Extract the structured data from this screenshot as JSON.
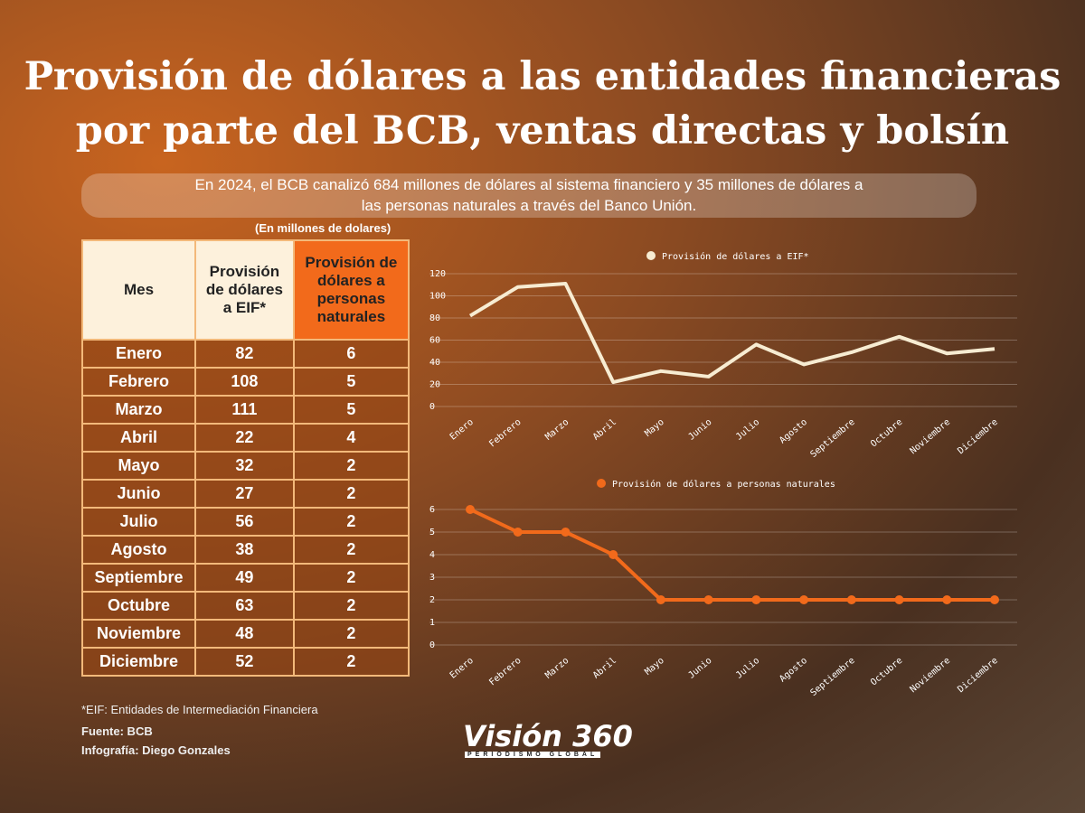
{
  "title": [
    "Provisión de dólares a las entidades financieras",
    "por parte del BCB, ventas directas y bolsín"
  ],
  "subtitle": [
    "En 2024, el BCB canalizó 684 millones de dólares al sistema financiero y 35 millones de dólares a",
    "las personas naturales a través del Banco Unión."
  ],
  "units": "(En millones de dolares)",
  "table": {
    "headers": [
      "Mes",
      "Provisión de dólares a EIF*",
      "Provisión de dólares a personas naturales"
    ],
    "rows": [
      [
        "Enero",
        "82",
        "6"
      ],
      [
        "Febrero",
        "108",
        "5"
      ],
      [
        "Marzo",
        "111",
        "5"
      ],
      [
        "Abril",
        "22",
        "4"
      ],
      [
        "Mayo",
        "32",
        "2"
      ],
      [
        "Junio",
        "27",
        "2"
      ],
      [
        "Julio",
        "56",
        "2"
      ],
      [
        "Agosto",
        "38",
        "2"
      ],
      [
        "Septiembre",
        "49",
        "2"
      ],
      [
        "Octubre",
        "63",
        "2"
      ],
      [
        "Noviembre",
        "48",
        "2"
      ],
      [
        "Diciembre",
        "52",
        "2"
      ]
    ]
  },
  "footnote": "*EIF: Entidades de Intermediación Financiera",
  "source": "Fuente: BCB",
  "credit": "Infografía: Diego Gonzales",
  "logo": {
    "name": "Visión 360",
    "tagline": "PERIODISMO GLOBAL"
  },
  "chart_data": [
    {
      "type": "line",
      "categories": [
        "Enero",
        "Febrero",
        "Marzo",
        "Abril",
        "Mayo",
        "Junio",
        "Julio",
        "Agosto",
        "Septiembre",
        "Octubre",
        "Noviembre",
        "Diciembre"
      ],
      "series": [
        {
          "name": "Provisión de dólares a EIF*",
          "color": "#f7ecd2",
          "values": [
            82,
            108,
            111,
            22,
            32,
            27,
            56,
            38,
            49,
            63,
            48,
            52
          ]
        }
      ],
      "ylim": [
        0,
        120
      ],
      "yticks": [
        0,
        20,
        40,
        60,
        80,
        100,
        120
      ],
      "grid": true,
      "markers": false
    },
    {
      "type": "line",
      "categories": [
        "Enero",
        "Febrero",
        "Marzo",
        "Abril",
        "Mayo",
        "Junio",
        "Julio",
        "Agosto",
        "Septiembre",
        "Octubre",
        "Noviembre",
        "Diciembre"
      ],
      "series": [
        {
          "name": "Provisión de dólares a personas naturales",
          "color": "#f26a1b",
          "values": [
            6,
            5,
            5,
            4,
            2,
            2,
            2,
            2,
            2,
            2,
            2,
            2
          ]
        }
      ],
      "ylim": [
        0,
        6
      ],
      "yticks": [
        0,
        1,
        2,
        3,
        4,
        5,
        6
      ],
      "grid": true,
      "markers": true
    }
  ]
}
